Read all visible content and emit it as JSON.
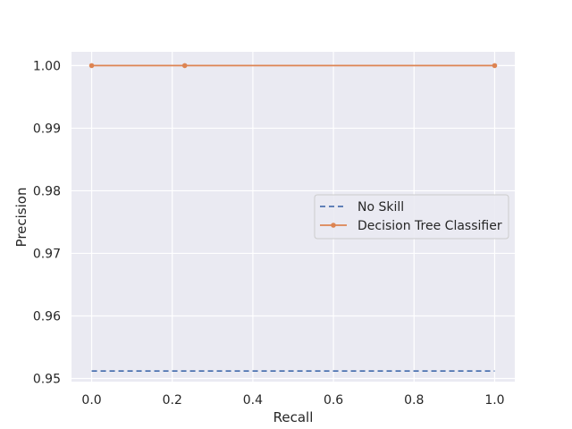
{
  "chart_data": {
    "type": "line",
    "title": "",
    "xlabel": "Recall",
    "ylabel": "Precision",
    "xlim": [
      -0.05,
      1.05
    ],
    "ylim": [
      0.9495,
      1.0022
    ],
    "xticks": [
      0.0,
      0.2,
      0.4,
      0.6,
      0.8,
      1.0
    ],
    "xtick_labels": [
      "0.0",
      "0.2",
      "0.4",
      "0.6",
      "0.8",
      "1.0"
    ],
    "yticks": [
      0.95,
      0.96,
      0.97,
      0.98,
      0.99,
      1.0
    ],
    "ytick_labels": [
      "0.95",
      "0.96",
      "0.97",
      "0.98",
      "0.99",
      "1.00"
    ],
    "grid": true,
    "legend_position": "center-right",
    "background_color": "#eaeaf2",
    "series": [
      {
        "name": "No Skill",
        "style": "dashed",
        "marker": "none",
        "color": "#4c72b0",
        "x": [
          0.0,
          1.0
        ],
        "y": [
          0.9512,
          0.9512
        ]
      },
      {
        "name": "Decision Tree Classifier",
        "style": "solid",
        "marker": "dot",
        "color": "#dd8452",
        "x": [
          0.0,
          0.231,
          1.0
        ],
        "y": [
          1.0,
          1.0,
          1.0
        ]
      }
    ]
  }
}
